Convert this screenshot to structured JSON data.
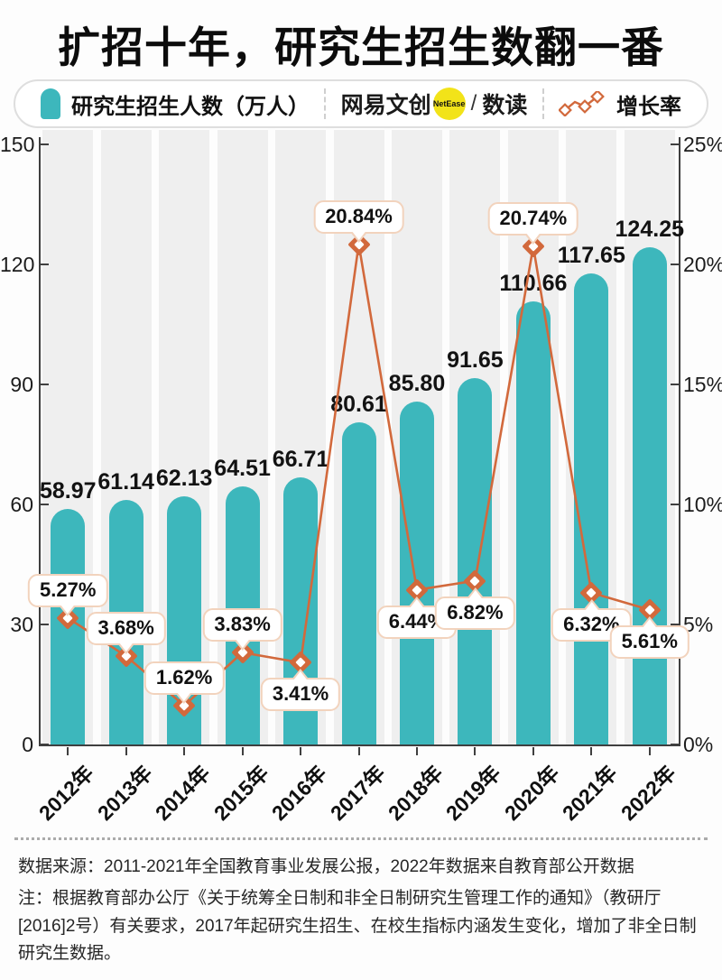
{
  "title": "扩招十年，研究生招生数翻一番",
  "legend": {
    "bar_label": "研究生招生人数（万人）",
    "line_label": "增长率",
    "brand": {
      "name": "网易文创",
      "badge": "NetEase",
      "separator": "/",
      "product": "数读"
    }
  },
  "colors": {
    "teal": "#3db7bc",
    "orange": "#d2693c",
    "peach": "#f2d3bd",
    "track_gray": "#efefef",
    "badge_yellow": "#f2e319"
  },
  "chart_data": {
    "type": "bar",
    "categories": [
      "2012年",
      "2013年",
      "2014年",
      "2015年",
      "2016年",
      "2017年",
      "2018年",
      "2019年",
      "2020年",
      "2021年",
      "2022年"
    ],
    "series": [
      {
        "name": "研究生招生人数（万人）",
        "type": "bar",
        "values": [
          58.97,
          61.14,
          62.13,
          64.51,
          66.71,
          80.61,
          85.8,
          91.65,
          110.66,
          117.65,
          124.25
        ],
        "labels": [
          "58.97",
          "61.14",
          "62.13",
          "64.51",
          "66.71",
          "80.61",
          "85.80",
          "91.65",
          "110.66",
          "117.65",
          "124.25"
        ]
      },
      {
        "name": "增长率",
        "type": "line",
        "values": [
          5.27,
          3.68,
          1.62,
          3.83,
          3.41,
          20.84,
          6.44,
          6.82,
          20.74,
          6.32,
          5.61
        ],
        "labels": [
          "5.27%",
          "3.68%",
          "1.62%",
          "3.83%",
          "3.41%",
          "20.84%",
          "6.44%",
          "6.82%",
          "20.74%",
          "6.32%",
          "5.61%"
        ],
        "callout_position": [
          "above",
          "above",
          "above",
          "above",
          "below",
          "above",
          "below",
          "below",
          "above",
          "below",
          "below"
        ]
      }
    ],
    "left_axis": {
      "title": "",
      "ticks": [
        0,
        30,
        60,
        90,
        120,
        150
      ],
      "max": 150
    },
    "right_axis": {
      "title": "",
      "ticks": [
        "0%",
        "5%",
        "10%",
        "15%",
        "20%",
        "25%"
      ],
      "max": 25
    },
    "grid": false,
    "legend_position": "top"
  },
  "footer": {
    "source": "数据来源：2011-2021年全国教育事业发展公报，2022年数据来自教育部公开数据",
    "note": "注：根据教育部办公厅《关于统筹全日制和非全日制研究生管理工作的通知》（教研厅[2016]2号）有关要求，2017年起研究生招生、在校生指标内涵发生变化，增加了非全日制研究生数据。"
  }
}
